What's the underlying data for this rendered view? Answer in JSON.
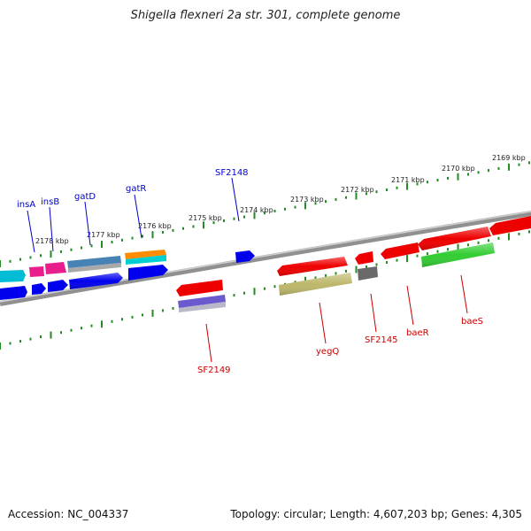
{
  "title": "Shigella flexneri 2a str. 301, complete genome",
  "footer": {
    "accession": "Accession: NC_004337",
    "summary": "Topology: circular; Length: 4,607,203 bp; Genes: 4,305"
  },
  "colors": {
    "backbone": "#808080",
    "tick": "#228B22",
    "forward_label": "#0000cc",
    "reverse_label": "#cc0000"
  },
  "scale_labels": [
    "2178 kbp",
    "2177 kbp",
    "2176 kbp",
    "2175 kbp",
    "2174 kbp",
    "2173 kbp",
    "2172 kbp",
    "2171 kbp",
    "2170 kbp",
    "2169 kbp"
  ],
  "gene_labels": {
    "forward": [
      "insA",
      "insB",
      "gatD",
      "gatR",
      "SF2148"
    ],
    "reverse": [
      "SF2149",
      "yegQ",
      "SF2145",
      "baeR",
      "baeS"
    ]
  }
}
